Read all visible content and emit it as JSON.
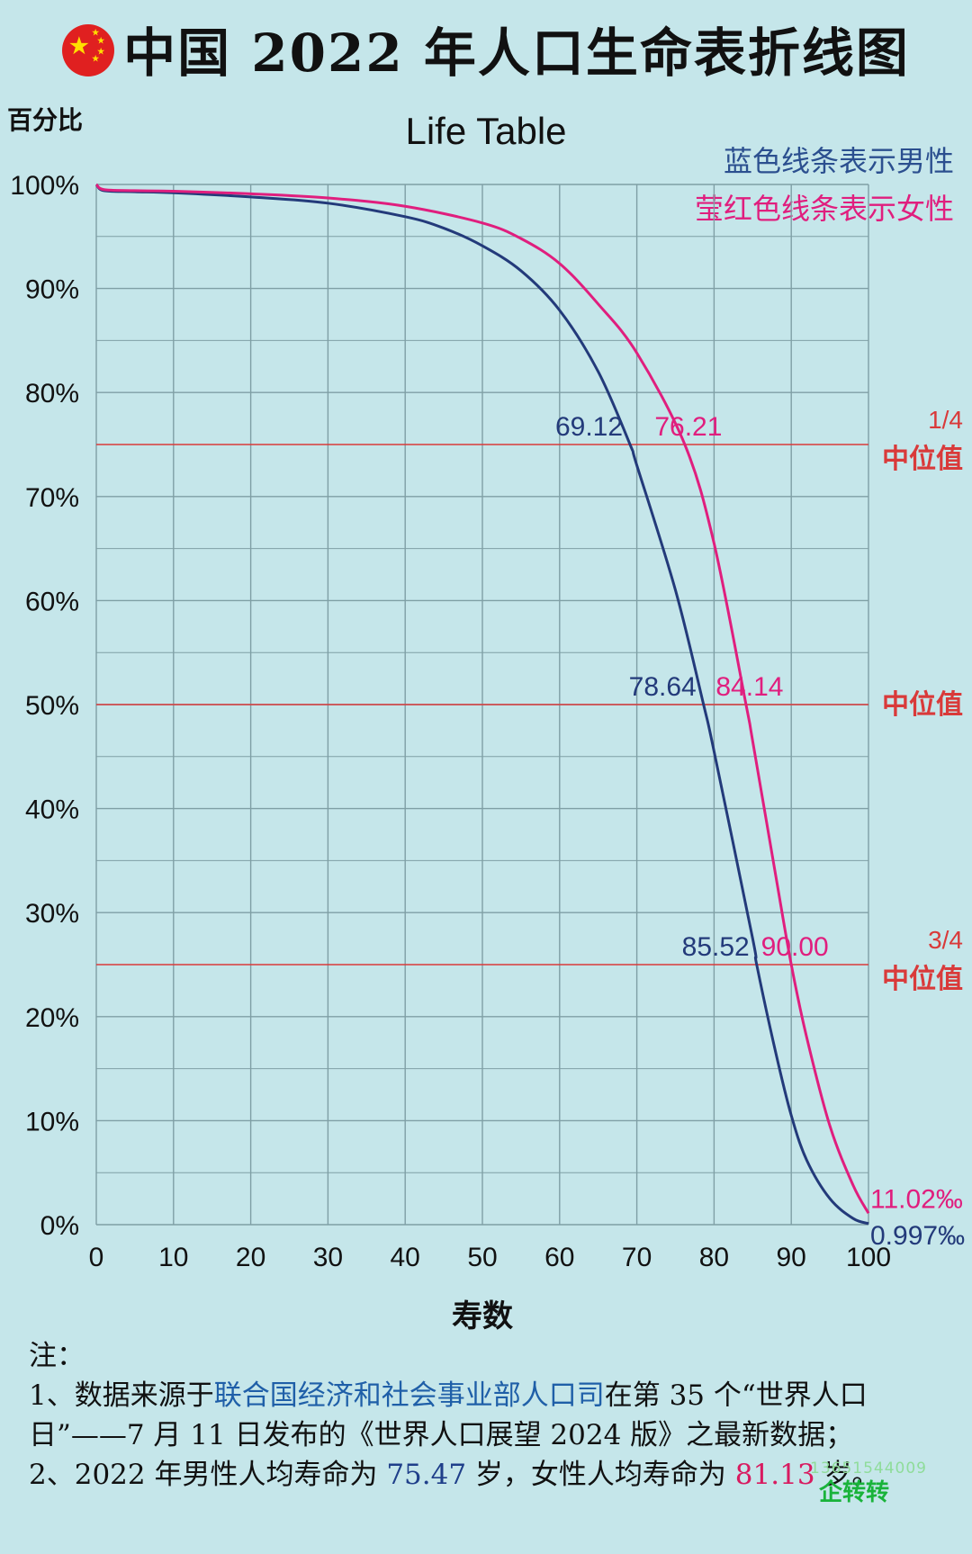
{
  "header": {
    "title": "中国 2022 年人口生命表折线图"
  },
  "colors": {
    "background": "#c5e6ea",
    "male": "#233a7a",
    "female": "#e01e7e",
    "median_line": "#d93a3a",
    "grid": "#7f9fa5"
  },
  "chart_data": {
    "type": "line",
    "title": "Life Table",
    "ylabel": "百分比",
    "xlabel": "寿数",
    "xlim": [
      0,
      100
    ],
    "ylim": [
      0,
      100
    ],
    "grid": true,
    "x_ticks": [
      "0",
      "10",
      "20",
      "30",
      "40",
      "50",
      "60",
      "70",
      "80",
      "90",
      "100"
    ],
    "y_ticks": [
      "0%",
      "10%",
      "20%",
      "30%",
      "40%",
      "50%",
      "60%",
      "70%",
      "80%",
      "90%",
      "100%"
    ],
    "legend": {
      "position": "top-right",
      "male_text": "蓝色线条表示男性",
      "female_text": "莹红色线条表示女性"
    },
    "series": [
      {
        "key": "male",
        "color": "#233a7a",
        "x": [
          0,
          1,
          5,
          10,
          20,
          30,
          40,
          45,
          50,
          55,
          60,
          65,
          69.12,
          70,
          75,
          78.64,
          80,
          85,
          85.52,
          88,
          90,
          92,
          95,
          98,
          100
        ],
        "y": [
          100,
          99.4,
          99.3,
          99.2,
          98.8,
          98.2,
          96.9,
          95.8,
          94.1,
          91.7,
          87.9,
          82.0,
          75,
          73.0,
          61.0,
          50,
          45.5,
          27.5,
          25,
          16.5,
          10.5,
          6.2,
          2.5,
          0.6,
          0.0997
        ]
      },
      {
        "key": "female",
        "color": "#e01e7e",
        "x": [
          0,
          1,
          5,
          10,
          20,
          30,
          40,
          50,
          55,
          60,
          65,
          70,
          76.21,
          80,
          84.14,
          85,
          88,
          90,
          92,
          95,
          98,
          100
        ],
        "y": [
          100,
          99.5,
          99.4,
          99.35,
          99.1,
          98.7,
          97.9,
          96.3,
          94.8,
          92.4,
          88.5,
          83.8,
          75,
          65.5,
          50,
          46.5,
          33.5,
          25,
          18.0,
          9.5,
          3.8,
          1.102
        ]
      }
    ],
    "reference_lines": [
      {
        "y": 75,
        "label_top": "1/4",
        "label_bottom": "中位值",
        "male_label": "69.12",
        "male_x": 69.12,
        "female_label": "76.21",
        "female_x": 76.21
      },
      {
        "y": 50,
        "label_top": "",
        "label_bottom": "中位值",
        "male_label": "78.64",
        "male_x": 78.64,
        "female_label": "84.14",
        "female_x": 84.14
      },
      {
        "y": 25,
        "label_top": "3/4",
        "label_bottom": "中位值",
        "male_label": "85.52",
        "male_x": 85.52,
        "female_label": "90.00",
        "female_x": 90.0
      }
    ],
    "end_labels": {
      "female": "11.02‰",
      "male": "0.997‰"
    }
  },
  "notes": {
    "heading": "注：",
    "line1_prefix": "1、数据来源于",
    "line1_source": "联合国经济和社会事业部人口司",
    "line1_rest": "在第 35 个“世界人口日”——7 月 11 日发布的《世界人口展望 2024 版》之最新数据；",
    "line2_a": "2、2022 年男性人均寿命为 ",
    "male_life": "75.47",
    "line2_b": " 岁，女性人均寿命为 ",
    "female_life": "81.13",
    "line2_c": " 岁。"
  },
  "watermark": {
    "brand": "企转转",
    "phone": "13651544009"
  }
}
